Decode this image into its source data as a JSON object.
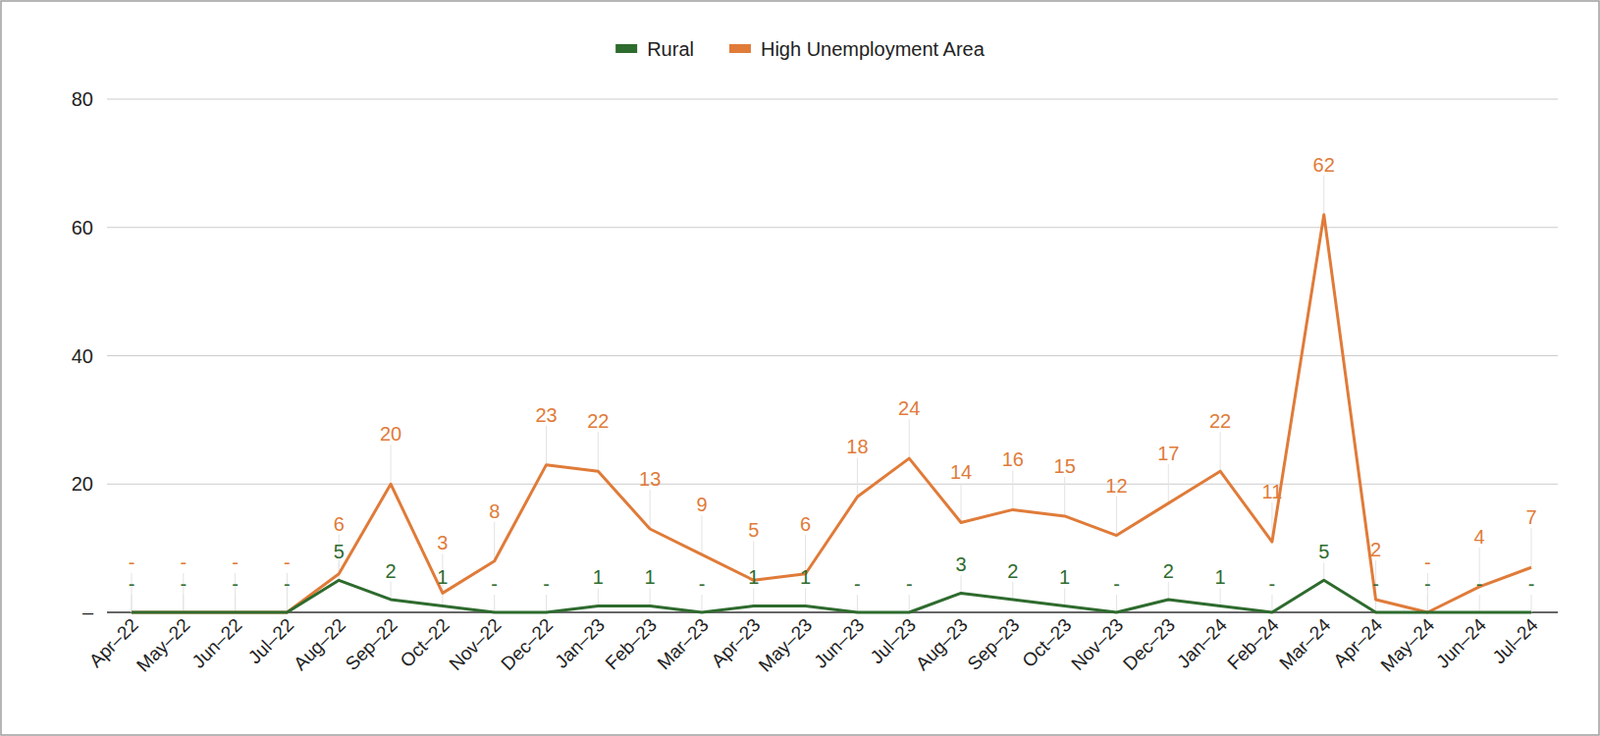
{
  "chart_data": {
    "type": "line",
    "categories": [
      "Apr–22",
      "May–22",
      "Jun–22",
      "Jul–22",
      "Aug–22",
      "Sep–22",
      "Oct–22",
      "Nov–22",
      "Dec–22",
      "Jan–23",
      "Feb–23",
      "Mar–23",
      "Apr–23",
      "May–23",
      "Jun–23",
      "Jul–23",
      "Aug–23",
      "Sep–23",
      "Oct–23",
      "Nov–23",
      "Dec–23",
      "Jan–24",
      "Feb–24",
      "Mar–24",
      "Apr–24",
      "May–24",
      "Jun–24",
      "Jul–24"
    ],
    "series": [
      {
        "name": "Rural",
        "color": "#2e6b2e",
        "values": [
          0,
          0,
          0,
          0,
          5,
          2,
          1,
          0,
          0,
          1,
          1,
          0,
          1,
          1,
          0,
          0,
          3,
          2,
          1,
          0,
          2,
          1,
          0,
          5,
          0,
          0,
          0,
          0
        ],
        "value_labels": [
          "-",
          "-",
          "-",
          "-",
          "5",
          "2",
          "1",
          "-",
          "-",
          "1",
          "1",
          "-",
          "1",
          "1",
          "-",
          "-",
          "3",
          "2",
          "1",
          "-",
          "2",
          "1",
          "-",
          "5",
          "-",
          "-",
          "-",
          "-"
        ]
      },
      {
        "name": "High Unemployment Area",
        "color": "#e07b39",
        "values": [
          0,
          0,
          0,
          0,
          6,
          20,
          3,
          8,
          23,
          22,
          13,
          9,
          5,
          6,
          18,
          24,
          14,
          16,
          15,
          12,
          17,
          22,
          11,
          62,
          2,
          0,
          4,
          7
        ],
        "value_labels": [
          "-",
          "-",
          "-",
          "-",
          "6",
          "20",
          "3",
          "8",
          "23",
          "22",
          "13",
          "9",
          "5",
          "6",
          "18",
          "24",
          "14",
          "16",
          "15",
          "12",
          "17",
          "22",
          "11",
          "62",
          "2",
          "-",
          "4",
          "7"
        ]
      }
    ],
    "ylim": [
      0,
      80
    ],
    "yticks": [
      {
        "value": 0,
        "label": "–"
      },
      20,
      40,
      60,
      80
    ],
    "grid": true,
    "legend": "top",
    "data_labels": true
  }
}
